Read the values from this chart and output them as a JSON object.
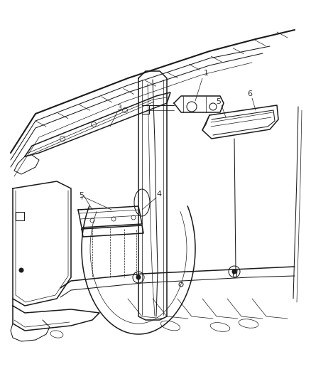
{
  "background_color": "#ffffff",
  "line_color": "#1a1a1a",
  "label_color": "#333333",
  "fig_width": 4.38,
  "fig_height": 5.33,
  "dpi": 100,
  "label_fs": 8,
  "lw_main": 1.1,
  "lw_med": 0.75,
  "lw_thin": 0.5,
  "lw_thick": 1.5
}
